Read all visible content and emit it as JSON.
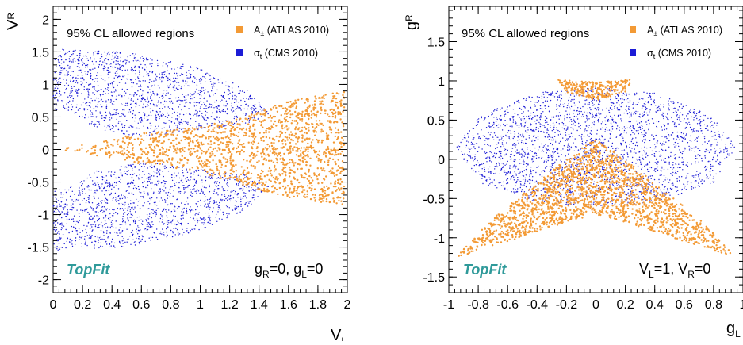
{
  "chart_data": [
    {
      "type": "scatter",
      "title": "",
      "xlabel": "V_L",
      "ylabel": "V_R",
      "xlim": [
        0,
        2
      ],
      "ylim": [
        -2.2,
        2.2
      ],
      "xticks": [
        "0",
        "0.2",
        "0.4",
        "0.6",
        "0.8",
        "1",
        "1.2",
        "1.4",
        "1.6",
        "1.8",
        "2"
      ],
      "yticks": [
        "-2",
        "-1.5",
        "-1",
        "-0.5",
        "0",
        "0.5",
        "1",
        "1.5",
        "2"
      ],
      "legend_title": "95% CL allowed regions",
      "legend_placement": "top",
      "brand": "TopFit",
      "annotation": "g_R=0, g_L=0",
      "grid": false,
      "series": [
        {
          "name": "A± (ATLAS 2010)",
          "color": "#f39a35",
          "region": "band around V_R≈0 widening with V_L",
          "outline": [
            [
              0.05,
              0.0
            ],
            [
              0.3,
              0.12
            ],
            [
              0.6,
              0.25
            ],
            [
              1.0,
              0.35
            ],
            [
              1.3,
              0.5
            ],
            [
              1.6,
              0.75
            ],
            [
              1.98,
              0.9
            ],
            [
              1.98,
              -0.85
            ],
            [
              1.6,
              -0.75
            ],
            [
              1.3,
              -0.55
            ],
            [
              1.0,
              -0.35
            ],
            [
              0.6,
              -0.22
            ],
            [
              0.3,
              -0.1
            ],
            [
              0.05,
              0.0
            ]
          ]
        },
        {
          "name": "σ_t (CMS 2010)",
          "color": "#1c1cd6",
          "region": "two lobes above and below V_R=0 (|V_R|≲1.55, V_L≲1.5)",
          "outline_upper": [
            [
              0.0,
              1.55
            ],
            [
              0.5,
              1.5
            ],
            [
              1.0,
              1.25
            ],
            [
              1.3,
              0.95
            ],
            [
              1.48,
              0.55
            ],
            [
              1.3,
              0.38
            ],
            [
              1.0,
              0.3
            ],
            [
              0.6,
              0.18
            ],
            [
              0.3,
              0.32
            ],
            [
              0.08,
              0.62
            ],
            [
              0.0,
              0.6
            ]
          ],
          "outline_lower": [
            [
              0.0,
              -1.55
            ],
            [
              0.5,
              -1.5
            ],
            [
              1.0,
              -1.25
            ],
            [
              1.3,
              -0.95
            ],
            [
              1.48,
              -0.55
            ],
            [
              1.3,
              -0.38
            ],
            [
              1.0,
              -0.3
            ],
            [
              0.6,
              -0.18
            ],
            [
              0.3,
              -0.32
            ],
            [
              0.08,
              -0.62
            ],
            [
              0.0,
              -0.6
            ]
          ]
        }
      ]
    },
    {
      "type": "scatter",
      "title": "",
      "xlabel": "g_L",
      "ylabel": "g_R",
      "xlim": [
        -1,
        1
      ],
      "ylim": [
        -1.7,
        1.95
      ],
      "xticks": [
        "-1",
        "-0.8",
        "-0.6",
        "-0.4",
        "-0.2",
        "0",
        "0.2",
        "0.4",
        "0.6",
        "0.8",
        "1"
      ],
      "yticks": [
        "-1.5",
        "-1",
        "-0.5",
        "0",
        "0.5",
        "1",
        "1.5"
      ],
      "legend_title": "95% CL allowed regions",
      "legend_placement": "top",
      "brand": "TopFit",
      "annotation": "V_L=1, V_R=0",
      "grid": false,
      "series": [
        {
          "name": "A± (ATLAS 2010)",
          "color": "#f39a35",
          "region": "upper cap near g_R≈0.9 and lower crescent from g_R≈0.25 down to g_R≈-1.25",
          "outline_cap": [
            [
              -0.27,
              1.02
            ],
            [
              0.0,
              0.98
            ],
            [
              0.25,
              1.02
            ],
            [
              0.2,
              0.85
            ],
            [
              0.0,
              0.75
            ],
            [
              -0.2,
              0.85
            ]
          ],
          "outline_crescent": [
            [
              -0.95,
              -1.25
            ],
            [
              -0.7,
              -0.75
            ],
            [
              -0.4,
              -0.3
            ],
            [
              -0.1,
              0.15
            ],
            [
              0.0,
              0.25
            ],
            [
              0.1,
              0.15
            ],
            [
              0.4,
              -0.3
            ],
            [
              0.7,
              -0.75
            ],
            [
              0.95,
              -1.25
            ],
            [
              0.6,
              -1.05
            ],
            [
              0.2,
              -0.8
            ],
            [
              0.0,
              -0.7
            ],
            [
              -0.2,
              -0.8
            ],
            [
              -0.6,
              -1.05
            ]
          ]
        },
        {
          "name": "σ_t (CMS 2010)",
          "color": "#1c1cd6",
          "region": "elliptical ring around (0,0.1)",
          "outline": [
            [
              -0.95,
              0.15
            ],
            [
              -0.8,
              0.55
            ],
            [
              -0.4,
              0.85
            ],
            [
              0.0,
              0.92
            ],
            [
              0.4,
              0.85
            ],
            [
              0.8,
              0.55
            ],
            [
              0.95,
              0.15
            ],
            [
              0.8,
              -0.3
            ],
            [
              0.4,
              -0.55
            ],
            [
              0.0,
              -0.6
            ],
            [
              -0.4,
              -0.55
            ],
            [
              -0.8,
              -0.3
            ]
          ]
        }
      ]
    }
  ]
}
